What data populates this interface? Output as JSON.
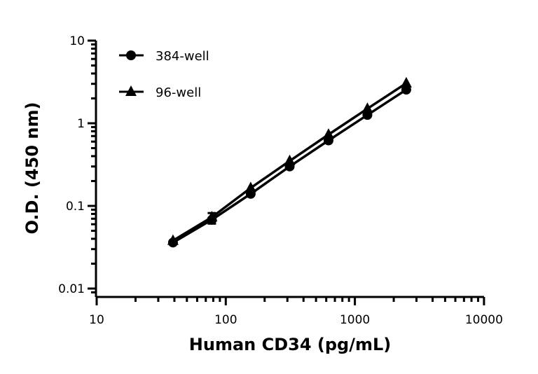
{
  "chart_data": {
    "type": "line",
    "xlabel": "Human CD34 (pg/mL)",
    "ylabel": "O.D. (450 nm)",
    "xscale": "log",
    "yscale": "log",
    "xlim": [
      10,
      10000
    ],
    "ylim": [
      0.008,
      10
    ],
    "xticks": [
      "10",
      "100",
      "1000",
      "10000"
    ],
    "yticks": [
      "0.01",
      "0.1",
      "1",
      "10"
    ],
    "grid": false,
    "legend_position": "top-left",
    "x": [
      39,
      78,
      156,
      312.5,
      625,
      1250,
      2500
    ],
    "series": [
      {
        "name": "384-well",
        "marker": "circle",
        "color": "#000000",
        "values": [
          0.036,
          0.068,
          0.14,
          0.3,
          0.62,
          1.26,
          2.55
        ]
      },
      {
        "name": "96-well",
        "marker": "triangle",
        "color": "#000000",
        "values": [
          0.038,
          0.073,
          0.165,
          0.35,
          0.73,
          1.5,
          3.05
        ]
      }
    ]
  }
}
